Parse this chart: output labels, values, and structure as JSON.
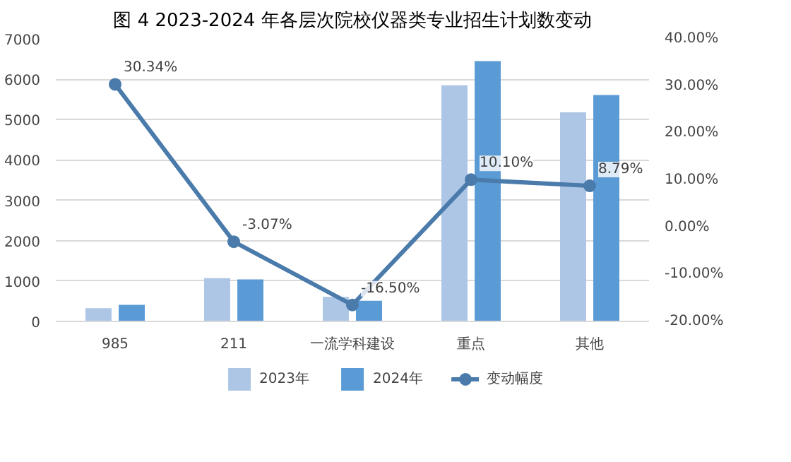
{
  "chart_data": {
    "type": "bar",
    "title": "图 4 2023-2024 年各层次院校仪器类专业招生计划数变动",
    "categories": [
      "985",
      "211",
      "一流学科建设",
      "重点",
      "其他"
    ],
    "series": [
      {
        "name": "2023年",
        "color": "#adc6e5",
        "values": [
          330,
          1070,
          610,
          5850,
          5180
        ]
      },
      {
        "name": "2024年",
        "color": "#5b9bd5",
        "values": [
          410,
          1040,
          510,
          6450,
          5610
        ]
      },
      {
        "name": "变动幅度",
        "type": "line",
        "axis": "y2",
        "color": "#4a7bab",
        "marker": "circle",
        "values": [
          30.34,
          -3.07,
          -16.5,
          10.1,
          8.79
        ],
        "value_labels": [
          "30.34%",
          "-3.07%",
          "-16.50%",
          "10.10%",
          "8.79%"
        ]
      }
    ],
    "ylim": [
      0,
      7000
    ],
    "yticks": [
      0,
      1000,
      2000,
      3000,
      4000,
      5000,
      6000,
      7000
    ],
    "y2lim": [
      -20,
      40
    ],
    "y2ticks": [
      {
        "value": -20,
        "label": "-20.00%"
      },
      {
        "value": -10,
        "label": "-10.00%"
      },
      {
        "value": 0,
        "label": "0.00%"
      },
      {
        "value": 10,
        "label": "10.00%"
      },
      {
        "value": 20,
        "label": "20.00%"
      },
      {
        "value": 30,
        "label": "30.00%"
      },
      {
        "value": 40,
        "label": "40.00%"
      }
    ],
    "grid": "y",
    "legend": "bottom"
  }
}
